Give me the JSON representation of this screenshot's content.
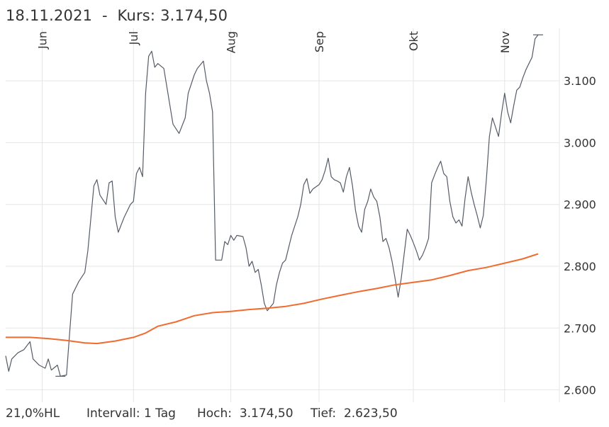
{
  "header": {
    "title": "18.11.2021  -  Kurs: 3.174,50"
  },
  "footer": {
    "hl": "21,0%HL",
    "interval": "Intervall: 1 Tag",
    "high": "Hoch:  3.174,50",
    "low": "Tief:  2.623,50"
  },
  "colors": {
    "price_line": "#555b66",
    "average_line": "#f26b2e",
    "grid": "#e6e6e6",
    "text": "#333333"
  },
  "chart_data": {
    "type": "line",
    "x_tick_labels": [
      "Jun",
      "Jul",
      "Aug",
      "Sep",
      "Okt",
      "Nov"
    ],
    "y_ticks": [
      2600,
      2700,
      2800,
      2900,
      3000,
      3100
    ],
    "y_tick_labels": [
      "2.600",
      "2.700",
      "2.800",
      "2.900",
      "3.000",
      "3.100"
    ],
    "ylim": [
      2580,
      3185
    ],
    "x_range": [
      0,
      182
    ],
    "month_starts": [
      12,
      42,
      74,
      103,
      134,
      164
    ],
    "grid": true,
    "series": [
      {
        "key": "price",
        "points": [
          [
            0,
            2655
          ],
          [
            1,
            2630
          ],
          [
            2,
            2650
          ],
          [
            4,
            2660
          ],
          [
            6,
            2665
          ],
          [
            8,
            2678
          ],
          [
            9,
            2650
          ],
          [
            11,
            2640
          ],
          [
            13,
            2635
          ],
          [
            14,
            2650
          ],
          [
            15,
            2632
          ],
          [
            17,
            2640
          ],
          [
            18,
            2622
          ],
          [
            20,
            2624
          ],
          [
            21,
            2690
          ],
          [
            22,
            2755
          ],
          [
            24,
            2775
          ],
          [
            26,
            2790
          ],
          [
            27,
            2825
          ],
          [
            29,
            2930
          ],
          [
            30,
            2940
          ],
          [
            31,
            2915
          ],
          [
            33,
            2900
          ],
          [
            34,
            2935
          ],
          [
            35,
            2938
          ],
          [
            36,
            2880
          ],
          [
            37,
            2855
          ],
          [
            39,
            2880
          ],
          [
            41,
            2900
          ],
          [
            42,
            2905
          ],
          [
            43,
            2950
          ],
          [
            44,
            2960
          ],
          [
            45,
            2945
          ],
          [
            46,
            3080
          ],
          [
            47,
            3140
          ],
          [
            48,
            3148
          ],
          [
            49,
            3122
          ],
          [
            50,
            3128
          ],
          [
            52,
            3120
          ],
          [
            53,
            3090
          ],
          [
            55,
            3030
          ],
          [
            57,
            3015
          ],
          [
            59,
            3040
          ],
          [
            60,
            3080
          ],
          [
            62,
            3110
          ],
          [
            63,
            3120
          ],
          [
            65,
            3132
          ],
          [
            66,
            3100
          ],
          [
            67,
            3080
          ],
          [
            68,
            3050
          ],
          [
            69,
            2810
          ],
          [
            71,
            2810
          ],
          [
            72,
            2840
          ],
          [
            73,
            2835
          ],
          [
            74,
            2850
          ],
          [
            75,
            2842
          ],
          [
            76,
            2850
          ],
          [
            78,
            2848
          ],
          [
            79,
            2830
          ],
          [
            80,
            2800
          ],
          [
            81,
            2808
          ],
          [
            82,
            2790
          ],
          [
            83,
            2795
          ],
          [
            84,
            2770
          ],
          [
            85,
            2740
          ],
          [
            86,
            2728
          ],
          [
            88,
            2740
          ],
          [
            89,
            2770
          ],
          [
            90,
            2790
          ],
          [
            91,
            2805
          ],
          [
            92,
            2810
          ],
          [
            94,
            2850
          ],
          [
            96,
            2880
          ],
          [
            97,
            2900
          ],
          [
            98,
            2932
          ],
          [
            99,
            2942
          ],
          [
            100,
            2918
          ],
          [
            101,
            2925
          ],
          [
            103,
            2932
          ],
          [
            104,
            2940
          ],
          [
            105,
            2955
          ],
          [
            106,
            2975
          ],
          [
            107,
            2945
          ],
          [
            108,
            2940
          ],
          [
            109,
            2938
          ],
          [
            110,
            2935
          ],
          [
            111,
            2920
          ],
          [
            112,
            2945
          ],
          [
            113,
            2960
          ],
          [
            114,
            2930
          ],
          [
            115,
            2890
          ],
          [
            116,
            2865
          ],
          [
            117,
            2855
          ],
          [
            118,
            2892
          ],
          [
            119,
            2905
          ],
          [
            120,
            2925
          ],
          [
            121,
            2912
          ],
          [
            122,
            2905
          ],
          [
            123,
            2880
          ],
          [
            124,
            2840
          ],
          [
            125,
            2845
          ],
          [
            126,
            2830
          ],
          [
            127,
            2808
          ],
          [
            128,
            2780
          ],
          [
            129,
            2750
          ],
          [
            130,
            2780
          ],
          [
            131,
            2820
          ],
          [
            132,
            2860
          ],
          [
            133,
            2850
          ],
          [
            134,
            2838
          ],
          [
            135,
            2825
          ],
          [
            136,
            2810
          ],
          [
            137,
            2818
          ],
          [
            138,
            2830
          ],
          [
            139,
            2845
          ],
          [
            140,
            2935
          ],
          [
            141,
            2948
          ],
          [
            142,
            2960
          ],
          [
            143,
            2970
          ],
          [
            144,
            2950
          ],
          [
            145,
            2945
          ],
          [
            146,
            2905
          ],
          [
            147,
            2880
          ],
          [
            148,
            2870
          ],
          [
            149,
            2875
          ],
          [
            150,
            2865
          ],
          [
            151,
            2910
          ],
          [
            152,
            2945
          ],
          [
            153,
            2920
          ],
          [
            154,
            2900
          ],
          [
            155,
            2882
          ],
          [
            156,
            2862
          ],
          [
            157,
            2882
          ],
          [
            158,
            2940
          ],
          [
            159,
            3010
          ],
          [
            160,
            3040
          ],
          [
            161,
            3025
          ],
          [
            162,
            3010
          ],
          [
            163,
            3048
          ],
          [
            164,
            3080
          ],
          [
            165,
            3050
          ],
          [
            166,
            3032
          ],
          [
            167,
            3060
          ],
          [
            168,
            3085
          ],
          [
            169,
            3090
          ],
          [
            170,
            3105
          ],
          [
            171,
            3118
          ],
          [
            172,
            3128
          ],
          [
            173,
            3138
          ],
          [
            174,
            3168
          ],
          [
            175,
            3174.5
          ]
        ]
      },
      {
        "key": "average",
        "points": [
          [
            0,
            2685
          ],
          [
            8,
            2685
          ],
          [
            14,
            2683
          ],
          [
            20,
            2680
          ],
          [
            26,
            2676
          ],
          [
            30,
            2675
          ],
          [
            36,
            2679
          ],
          [
            42,
            2685
          ],
          [
            46,
            2692
          ],
          [
            50,
            2703
          ],
          [
            56,
            2710
          ],
          [
            62,
            2720
          ],
          [
            68,
            2725
          ],
          [
            74,
            2727
          ],
          [
            80,
            2730
          ],
          [
            86,
            2732
          ],
          [
            92,
            2735
          ],
          [
            98,
            2740
          ],
          [
            104,
            2747
          ],
          [
            110,
            2753
          ],
          [
            116,
            2759
          ],
          [
            122,
            2764
          ],
          [
            128,
            2770
          ],
          [
            134,
            2774
          ],
          [
            140,
            2778
          ],
          [
            146,
            2785
          ],
          [
            152,
            2793
          ],
          [
            158,
            2798
          ],
          [
            164,
            2805
          ],
          [
            170,
            2812
          ],
          [
            175,
            2820
          ]
        ]
      }
    ]
  }
}
